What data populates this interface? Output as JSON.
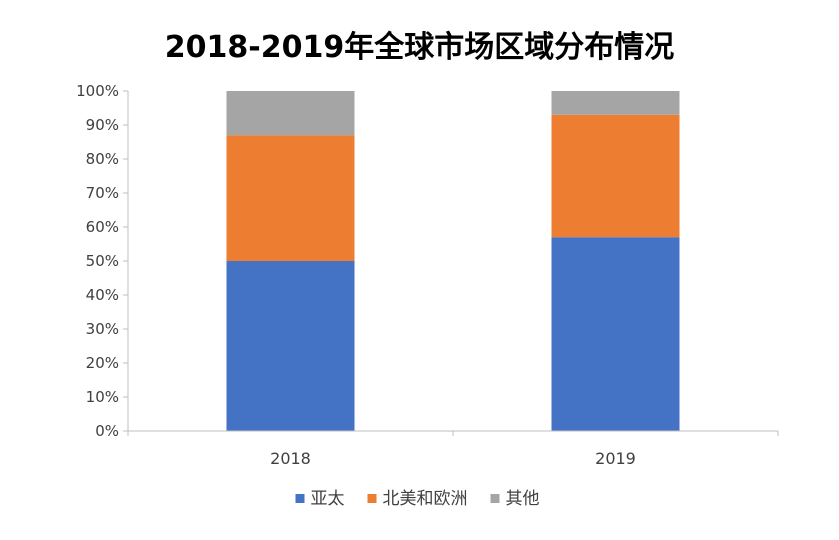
{
  "chart_data": {
    "type": "bar",
    "stacked": true,
    "title": "2018-2019年全球市场区域分布情况",
    "categories": [
      "2018",
      "2019"
    ],
    "ylim": [
      0,
      100
    ],
    "y_ticks": [
      "0%",
      "10%",
      "20%",
      "30%",
      "40%",
      "50%",
      "60%",
      "70%",
      "80%",
      "90%",
      "100%"
    ],
    "grid": false,
    "legend_position": "bottom",
    "series": [
      {
        "name": "亚太",
        "values": [
          50,
          57
        ],
        "color": "#4472C4"
      },
      {
        "name": "北美和欧洲",
        "values": [
          37,
          36
        ],
        "color": "#ED7D31"
      },
      {
        "name": "其他",
        "values": [
          13,
          7
        ],
        "color": "#A5A5A5"
      }
    ]
  }
}
